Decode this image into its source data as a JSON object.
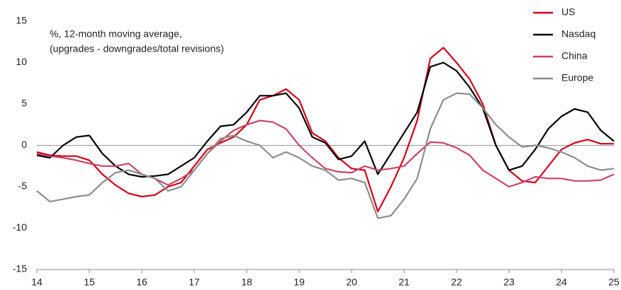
{
  "chart_data": {
    "type": "line",
    "annotation": [
      "%, 12-month moving average,",
      "(upgrades - downgrades/total revisions)"
    ],
    "x": [
      14,
      14.25,
      14.5,
      14.75,
      15,
      15.25,
      15.5,
      15.75,
      16,
      16.25,
      16.5,
      16.75,
      17,
      17.25,
      17.5,
      17.75,
      18,
      18.25,
      18.5,
      18.75,
      19,
      19.25,
      19.5,
      19.75,
      20,
      20.25,
      20.5,
      20.75,
      21,
      21.25,
      21.5,
      21.75,
      22,
      22.25,
      22.5,
      22.75,
      23,
      23.25,
      23.5,
      23.75,
      24,
      24.25,
      24.5,
      24.75,
      25
    ],
    "series": [
      {
        "name": "US",
        "color": "#d0021b",
        "values": [
          -0.8,
          -1.2,
          -1.3,
          -1.3,
          -1.8,
          -3.5,
          -4.8,
          -5.8,
          -6.2,
          -6.0,
          -5.0,
          -4.5,
          -2.5,
          -0.5,
          0.3,
          1.0,
          2.5,
          5.5,
          6.0,
          6.8,
          5.5,
          1.5,
          0.5,
          -1.5,
          -2.8,
          -3.0,
          -8.0,
          -5.0,
          -1.5,
          3.0,
          10.5,
          11.8,
          10.0,
          8.0,
          5.0,
          0.0,
          -3.0,
          -4.3,
          -4.5,
          -2.5,
          -0.5,
          0.3,
          0.7,
          0.2,
          0.2
        ]
      },
      {
        "name": "Nasdaq",
        "color": "#000000",
        "values": [
          -1.2,
          -1.5,
          0.0,
          1.0,
          1.2,
          -1.0,
          -2.5,
          -3.5,
          -3.8,
          -3.7,
          -3.5,
          -2.5,
          -1.5,
          0.5,
          2.3,
          2.5,
          4.0,
          6.0,
          6.0,
          6.3,
          4.5,
          1.0,
          0.3,
          -1.7,
          -1.3,
          0.5,
          -3.5,
          -1.0,
          1.5,
          4.0,
          9.5,
          10.0,
          9.0,
          7.0,
          4.5,
          0.0,
          -3.0,
          -2.5,
          -0.5,
          2.0,
          3.5,
          4.4,
          4.0,
          1.8,
          0.5
        ]
      },
      {
        "name": "China",
        "color": "#c8446a",
        "values": [
          -1.0,
          -1.3,
          -1.5,
          -1.8,
          -2.2,
          -2.5,
          -2.5,
          -2.2,
          -3.5,
          -4.0,
          -4.8,
          -4.0,
          -3.0,
          -1.0,
          0.5,
          1.8,
          2.5,
          3.0,
          2.8,
          2.0,
          0.0,
          -1.5,
          -2.8,
          -3.2,
          -3.3,
          -2.5,
          -3.0,
          -2.8,
          -2.5,
          -1.0,
          0.4,
          0.3,
          -0.3,
          -1.2,
          -3.0,
          -4.0,
          -5.0,
          -4.5,
          -3.8,
          -4.0,
          -4.0,
          -4.3,
          -4.3,
          -4.2,
          -3.5
        ]
      },
      {
        "name": "Europe",
        "color": "#8c8c8c",
        "values": [
          -5.5,
          -6.8,
          -6.5,
          -6.2,
          -6.0,
          -4.5,
          -3.3,
          -3.0,
          -3.5,
          -4.0,
          -5.5,
          -5.0,
          -3.0,
          -1.0,
          0.8,
          1.2,
          0.5,
          0.0,
          -1.5,
          -0.8,
          -1.5,
          -2.5,
          -3.0,
          -4.2,
          -4.0,
          -4.5,
          -8.8,
          -8.5,
          -6.5,
          -4.0,
          2.0,
          5.5,
          6.3,
          6.2,
          4.5,
          2.5,
          1.0,
          -0.2,
          0.0,
          -0.3,
          -0.8,
          -1.5,
          -2.5,
          -3.0,
          -2.8
        ]
      }
    ],
    "xlim": [
      14,
      25
    ],
    "xticks": [
      14,
      15,
      16,
      17,
      18,
      19,
      20,
      21,
      22,
      23,
      24,
      25
    ],
    "ylim": [
      -15,
      15
    ],
    "yticks": [
      -15,
      -10,
      -5,
      0,
      5,
      10,
      15
    ],
    "legend": "top-right"
  }
}
